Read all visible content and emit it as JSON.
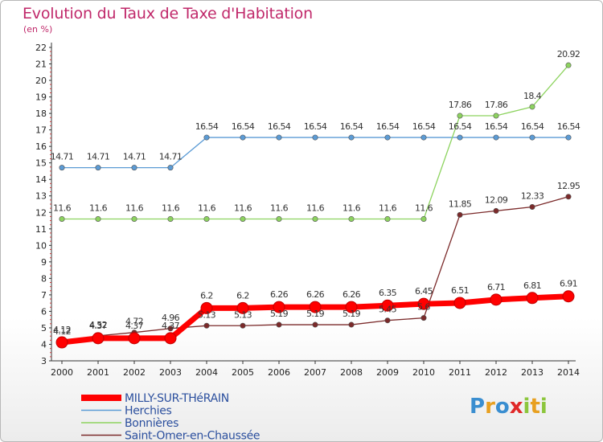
{
  "title": "Evolution du Taux de Taxe d'Habitation",
  "subtitle": "(en %)",
  "logo": {
    "text": "Proxiti",
    "letters": [
      "P",
      "r",
      "o",
      "x",
      "i",
      "t",
      "i"
    ],
    "colors": [
      "#3a8ed0",
      "#e8a020",
      "#3a8ed0",
      "#e02828",
      "#8cc63c",
      "#e8a020",
      "#8cc63c"
    ]
  },
  "chart_data": {
    "type": "line",
    "x": [
      "2000",
      "2001",
      "2002",
      "2003",
      "2004",
      "2005",
      "2006",
      "2007",
      "2008",
      "2009",
      "2010",
      "2011",
      "2012",
      "2013",
      "2014"
    ],
    "ylim": [
      3,
      22
    ],
    "yticks": [
      "3",
      "4",
      "5",
      "6",
      "7",
      "8",
      "9",
      "10",
      "11",
      "12",
      "13",
      "14",
      "15",
      "16",
      "17",
      "18",
      "19",
      "20",
      "21",
      "22"
    ],
    "grid": false,
    "legend": "bottom-left",
    "series": [
      {
        "name": "MILLY-SUR-THéRAIN",
        "color": "#ff0000",
        "width": 7,
        "values": [
          4.12,
          4.37,
          4.37,
          4.37,
          6.2,
          6.2,
          6.26,
          6.26,
          6.26,
          6.35,
          6.45,
          6.51,
          6.71,
          6.81,
          6.91
        ],
        "labels": [
          "4.12",
          "4.37",
          "4.37",
          "4.37",
          "6.2",
          "6.2",
          "6.26",
          "6.26",
          "6.26",
          "6.35",
          "6.45",
          "6.51",
          "6.71",
          "6.81",
          "6.91"
        ]
      },
      {
        "name": "Herchies",
        "color": "#5b9bd5",
        "width": 1.3,
        "values": [
          14.71,
          14.71,
          14.71,
          14.71,
          16.54,
          16.54,
          16.54,
          16.54,
          16.54,
          16.54,
          16.54,
          16.54,
          16.54,
          16.54,
          16.54
        ],
        "labels": [
          "14.71",
          "14.71",
          "14.71",
          "14.71",
          "16.54",
          "16.54",
          "16.54",
          "16.54",
          "16.54",
          "16.54",
          "16.54",
          "16.54",
          "16.54",
          "16.54",
          "16.54"
        ]
      },
      {
        "name": "Bonnières",
        "color": "#8dd35f",
        "width": 1.3,
        "values": [
          11.6,
          11.6,
          11.6,
          11.6,
          11.6,
          11.6,
          11.6,
          11.6,
          11.6,
          11.6,
          11.6,
          17.86,
          17.86,
          18.4,
          20.92
        ],
        "labels": [
          "11.6",
          "11.6",
          "11.6",
          "11.6",
          "11.6",
          "11.6",
          "11.6",
          "11.6",
          "11.6",
          "11.6",
          "11.6",
          "17.86",
          "17.86",
          "18.4",
          "20.92"
        ]
      },
      {
        "name": "Saint-Omer-en-Chaussée",
        "color": "#7b2a2a",
        "width": 1.3,
        "values": [
          4.12,
          4.52,
          4.72,
          4.96,
          5.13,
          5.13,
          5.19,
          5.19,
          5.19,
          5.45,
          5.6,
          11.85,
          12.09,
          12.33,
          12.95
        ],
        "labels": [
          "4.12",
          "4.52",
          "4.72",
          "4.96",
          "5.13",
          "5.13",
          "5.19",
          "5.19",
          "5.19",
          "5.45",
          "5.6",
          "11.85",
          "12.09",
          "12.33",
          "12.95"
        ]
      }
    ]
  }
}
